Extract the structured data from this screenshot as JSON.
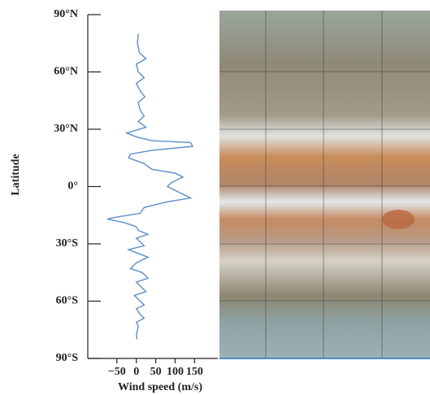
{
  "chart_data": {
    "type": "line",
    "ylabel": "Latitude",
    "xlabel": "Wind speed (m/s)",
    "color": "#5b8fc9",
    "ylim": [
      -90,
      90
    ],
    "yticks": [
      {
        "value": 90,
        "label": "90°N"
      },
      {
        "value": 60,
        "label": "60°N"
      },
      {
        "value": 30,
        "label": "30°N"
      },
      {
        "value": 0,
        "label": "0°"
      },
      {
        "value": -30,
        "label": "30°S"
      },
      {
        "value": -60,
        "label": "60°S"
      },
      {
        "value": -90,
        "label": "90°S"
      }
    ],
    "xlim": [
      -125,
      210
    ],
    "xticks": [
      {
        "value": -50,
        "label": "−50"
      },
      0,
      50,
      100,
      150
    ],
    "latitudes": [
      80,
      75,
      70,
      67,
      64,
      60,
      57,
      54,
      50,
      47,
      44,
      40,
      37,
      34,
      31,
      28,
      26,
      24,
      23,
      21,
      19,
      17,
      15,
      12,
      9,
      7,
      5,
      2,
      0,
      -3,
      -6,
      -8,
      -11,
      -14,
      -16,
      -17,
      -19,
      -21,
      -23,
      -25,
      -27,
      -29,
      -31,
      -33,
      -35,
      -37,
      -40,
      -43,
      -45,
      -48,
      -50,
      -52,
      -55,
      -57,
      -59,
      -62,
      -64,
      -67,
      -69,
      -71,
      -73,
      -78,
      -80
    ],
    "values": [
      5,
      3,
      8,
      25,
      0,
      5,
      20,
      0,
      10,
      22,
      5,
      10,
      20,
      5,
      25,
      -25,
      0,
      40,
      140,
      145,
      40,
      -15,
      -20,
      20,
      40,
      100,
      120,
      90,
      80,
      110,
      140,
      80,
      20,
      10,
      -50,
      -75,
      -30,
      0,
      5,
      30,
      0,
      10,
      20,
      -20,
      5,
      30,
      0,
      -15,
      15,
      30,
      0,
      10,
      25,
      -5,
      5,
      20,
      0,
      10,
      20,
      0,
      5,
      0,
      2
    ]
  }
}
